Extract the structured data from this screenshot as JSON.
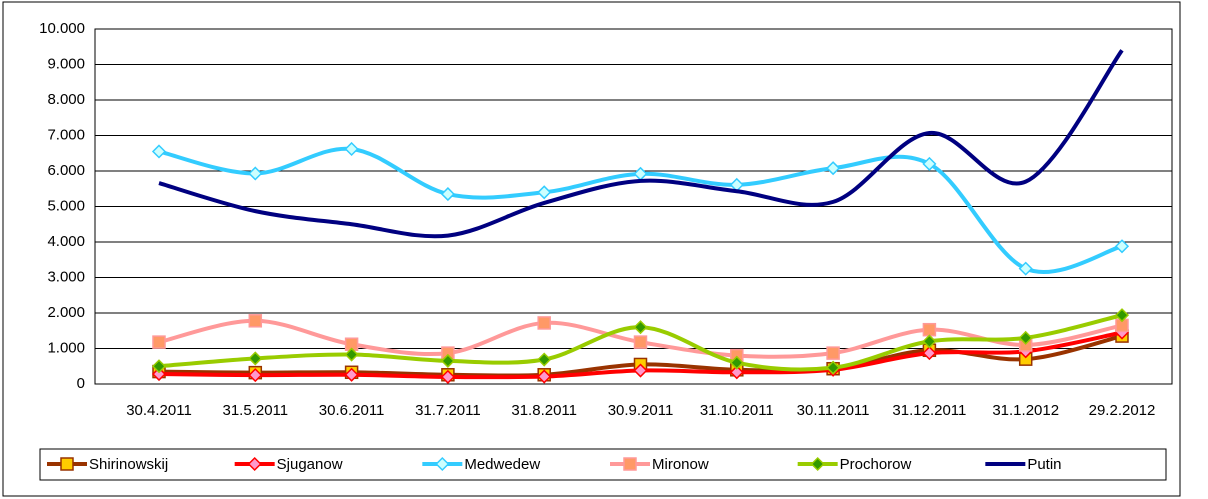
{
  "chart_data": {
    "type": "line",
    "categories": [
      "30.4.2011",
      "31.5.2011",
      "30.6.2011",
      "31.7.2011",
      "31.8.2011",
      "30.9.2011",
      "31.10.2011",
      "30.11.2011",
      "31.12.2011",
      "31.1.2012",
      "29.2.2012"
    ],
    "ylim": [
      0,
      10000
    ],
    "yticks": [
      0,
      {
        "value": 1000,
        "label": "1.000"
      },
      {
        "value": 2000,
        "label": "2.000"
      },
      {
        "value": 3000,
        "label": "3.000"
      },
      {
        "value": 4000,
        "label": "4.000"
      },
      {
        "value": 5000,
        "label": "5.000"
      },
      {
        "value": 6000,
        "label": "6.000"
      },
      {
        "value": 7000,
        "label": "7.000"
      },
      {
        "value": 8000,
        "label": "8.000"
      },
      {
        "value": 9000,
        "label": "9.000"
      },
      {
        "value": 10000,
        "label": "10.000"
      }
    ],
    "grid": true,
    "smooth": true,
    "legend": "bottom",
    "series": [
      {
        "name": "Shirinowskij",
        "color": "#993300",
        "marker": "square",
        "marker_color": "#ffcc00",
        "values": [
          350,
          320,
          330,
          260,
          260,
          550,
          400,
          430,
          950,
          700,
          1350
        ]
      },
      {
        "name": "Sjuganow",
        "color": "#ff0000",
        "marker": "diamond",
        "marker_color": "#ff99cc",
        "values": [
          280,
          250,
          260,
          200,
          210,
          380,
          330,
          400,
          870,
          920,
          1450
        ]
      },
      {
        "name": "Medwedew",
        "color": "#33ccff",
        "marker": "diamond",
        "marker_color": "#ccffff",
        "values": [
          6550,
          5930,
          6620,
          5350,
          5400,
          5920,
          5610,
          6080,
          6200,
          3250,
          3880
        ]
      },
      {
        "name": "Mironow",
        "color": "#ff9999",
        "marker": "square",
        "marker_color": "#ff9966",
        "values": [
          1180,
          1780,
          1120,
          870,
          1720,
          1180,
          800,
          870,
          1530,
          1100,
          1650
        ]
      },
      {
        "name": "Prochorow",
        "color": "#99cc00",
        "marker": "diamond",
        "marker_color": "#339900",
        "values": [
          500,
          720,
          830,
          650,
          690,
          1600,
          600,
          460,
          1200,
          1300,
          1940
        ]
      },
      {
        "name": "Putin",
        "color": "#000080",
        "marker": null,
        "marker_color": null,
        "values": [
          5660,
          4870,
          4500,
          4180,
          5100,
          5720,
          5430,
          5130,
          7070,
          5700,
          9400
        ]
      }
    ]
  }
}
